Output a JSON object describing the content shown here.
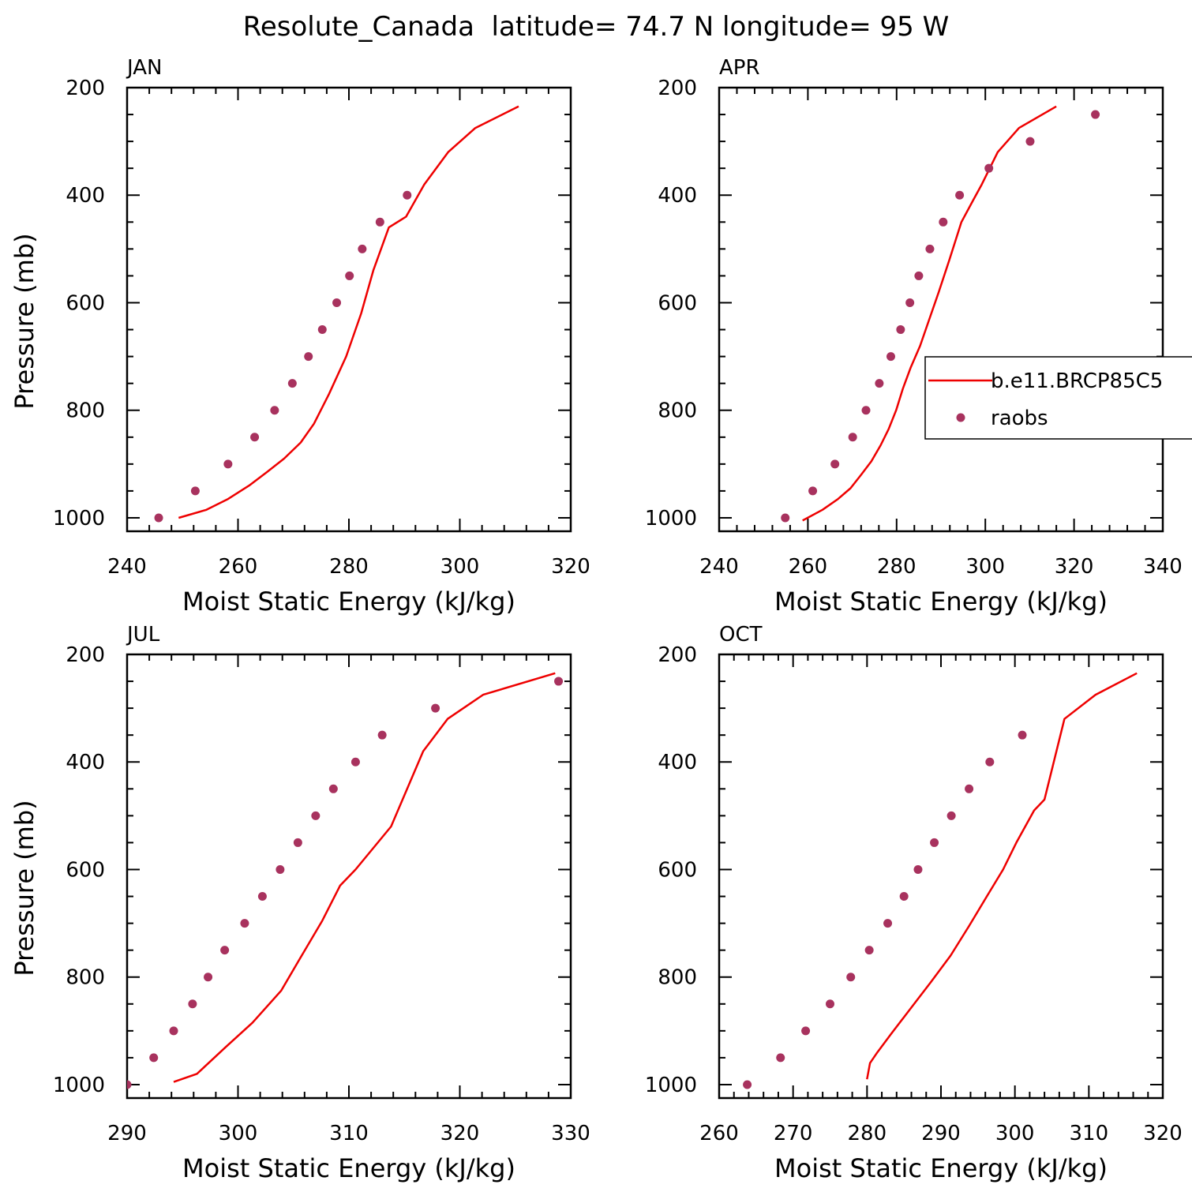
{
  "figure": {
    "title": "Resolute_Canada  latitude= 74.7 N longitude= 95 W"
  },
  "colors": {
    "model_line": "#ee0000",
    "obs_marker": "#a8325e",
    "axes": "#000000"
  },
  "legend": {
    "panel": "APR",
    "entries": [
      {
        "label": "b.e11.BRCP85C5",
        "kind": "line"
      },
      {
        "label": "raobs",
        "kind": "marker"
      }
    ]
  },
  "chart_data": [
    {
      "type": "line",
      "panel": "JAN",
      "title": "JAN",
      "xlabel": "Moist Static Energy (kJ/kg)",
      "ylabel": "Pressure (mb)",
      "xlim": [
        240,
        320
      ],
      "ylim": [
        200,
        1025
      ],
      "x_ticks": [
        "240",
        "260",
        "280",
        "300",
        "320"
      ],
      "y_ticks": [
        "200",
        "400",
        "600",
        "800",
        "1000"
      ],
      "series": [
        {
          "name": "b.e11.BRCP85C5",
          "kind": "line",
          "x": [
            249.3,
            254.3,
            258.2,
            262.0,
            265.2,
            268.3,
            271.3,
            273.7,
            276.4,
            279.5,
            282.2,
            284.4,
            287.2,
            290.3,
            293.6,
            297.9,
            302.8,
            310.6
          ],
          "y": [
            1000,
            985,
            965,
            940,
            915,
            890,
            860,
            825,
            770,
            700,
            620,
            540,
            460,
            440,
            380,
            320,
            275,
            235
          ]
        },
        {
          "name": "raobs",
          "kind": "marker",
          "x": [
            245.7,
            252.3,
            258.2,
            263.0,
            266.6,
            269.8,
            272.7,
            275.2,
            277.8,
            280.1,
            282.4,
            285.6,
            290.5
          ],
          "y": [
            1000,
            950,
            900,
            850,
            800,
            750,
            700,
            650,
            600,
            550,
            500,
            450,
            400
          ]
        }
      ]
    },
    {
      "type": "line",
      "panel": "APR",
      "title": "APR",
      "xlabel": "Moist Static Energy (kJ/kg)",
      "ylabel": "",
      "xlim": [
        240,
        340
      ],
      "ylim": [
        200,
        1025
      ],
      "x_ticks": [
        "240",
        "260",
        "280",
        "300",
        "320",
        "340"
      ],
      "y_ticks": [
        "200",
        "400",
        "600",
        "800",
        "1000"
      ],
      "series": [
        {
          "name": "b.e11.BRCP85C5",
          "kind": "line",
          "x": [
            258.8,
            263.3,
            266.8,
            269.6,
            272.0,
            274.3,
            276.4,
            278.2,
            279.9,
            281.4,
            283.2,
            285.3,
            287.4,
            289.5,
            291.9,
            294.6,
            297.2,
            299.2,
            302.8,
            307.6,
            316.0
          ],
          "y": [
            1005,
            985,
            965,
            945,
            920,
            895,
            865,
            835,
            800,
            760,
            720,
            680,
            630,
            580,
            520,
            450,
            410,
            380,
            320,
            275,
            235
          ]
        },
        {
          "name": "raobs",
          "kind": "marker",
          "x": [
            254.9,
            261.1,
            266.1,
            270.1,
            273.1,
            276.1,
            278.7,
            280.9,
            283.0,
            285.0,
            287.5,
            290.5,
            294.2,
            300.8,
            310.1,
            324.8
          ],
          "y": [
            1000,
            950,
            900,
            850,
            800,
            750,
            700,
            650,
            600,
            550,
            500,
            450,
            400,
            350,
            300,
            250
          ]
        }
      ]
    },
    {
      "type": "line",
      "panel": "JUL",
      "title": "JUL",
      "xlabel": "Moist Static Energy (kJ/kg)",
      "ylabel": "Pressure (mb)",
      "xlim": [
        290,
        330
      ],
      "ylim": [
        200,
        1025
      ],
      "x_ticks": [
        "290",
        "300",
        "310",
        "320",
        "330"
      ],
      "y_ticks": [
        "200",
        "400",
        "600",
        "800",
        "1000"
      ],
      "series": [
        {
          "name": "b.e11.BRCP85C5",
          "kind": "line",
          "x": [
            294.2,
            296.3,
            298.9,
            301.3,
            303.9,
            305.6,
            307.6,
            309.2,
            310.6,
            313.8,
            316.7,
            318.9,
            322.1,
            328.6
          ],
          "y": [
            995,
            980,
            930,
            885,
            825,
            765,
            695,
            630,
            600,
            520,
            380,
            320,
            275,
            235
          ]
        },
        {
          "name": "raobs",
          "kind": "marker",
          "x": [
            290.0,
            292.4,
            294.2,
            295.9,
            297.3,
            298.8,
            300.6,
            302.2,
            303.8,
            305.4,
            307.0,
            308.6,
            310.6,
            313.0,
            317.8,
            328.9
          ],
          "y": [
            1000,
            950,
            900,
            850,
            800,
            750,
            700,
            650,
            600,
            550,
            500,
            450,
            400,
            350,
            300,
            250
          ]
        }
      ]
    },
    {
      "type": "line",
      "panel": "OCT",
      "title": "OCT",
      "xlabel": "Moist Static Energy (kJ/kg)",
      "ylabel": "",
      "xlim": [
        260,
        320
      ],
      "ylim": [
        200,
        1025
      ],
      "x_ticks": [
        "260",
        "270",
        "280",
        "290",
        "300",
        "310",
        "320"
      ],
      "y_ticks": [
        "200",
        "400",
        "600",
        "800",
        "1000"
      ],
      "series": [
        {
          "name": "b.e11.BRCP85C5",
          "kind": "line",
          "x": [
            280.0,
            280.4,
            281.4,
            283.3,
            285.8,
            288.6,
            291.3,
            293.8,
            296.2,
            298.4,
            300.2,
            302.6,
            304.0,
            306.7,
            310.9,
            316.5
          ],
          "y": [
            990,
            960,
            940,
            905,
            860,
            810,
            760,
            705,
            650,
            600,
            550,
            490,
            470,
            320,
            275,
            235
          ]
        },
        {
          "name": "raobs",
          "kind": "marker",
          "x": [
            263.8,
            268.3,
            271.7,
            275.0,
            277.8,
            280.3,
            282.8,
            285.0,
            286.9,
            289.1,
            291.4,
            293.8,
            296.6,
            301.0
          ],
          "y": [
            1000,
            950,
            900,
            850,
            800,
            750,
            700,
            650,
            600,
            550,
            500,
            450,
            400,
            350
          ]
        }
      ]
    }
  ]
}
